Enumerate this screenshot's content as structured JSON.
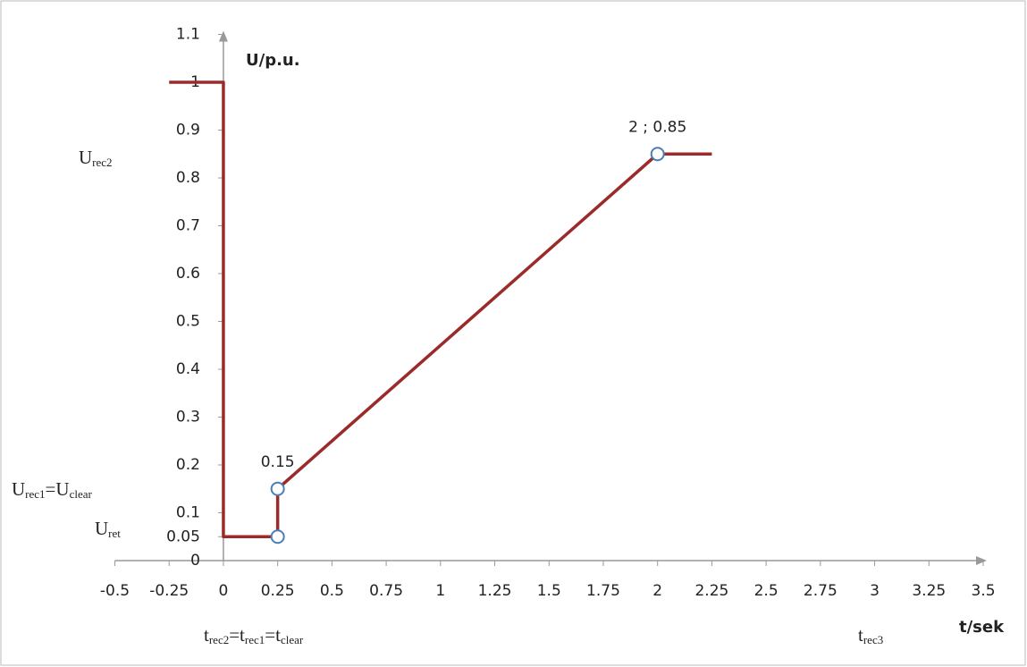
{
  "chart_data": {
    "type": "line",
    "y_axis_label": "U/p.u.",
    "x_axis_label": "t/sek",
    "xlim": [
      -0.5,
      3.5
    ],
    "ylim": [
      0,
      1.1
    ],
    "xticks": [
      -0.5,
      -0.25,
      0,
      0.25,
      0.5,
      0.75,
      1,
      1.25,
      1.5,
      1.75,
      2,
      2.25,
      2.5,
      2.75,
      3,
      3.25,
      3.5
    ],
    "yticks": [
      0,
      0.05,
      0.1,
      0.2,
      0.3,
      0.4,
      0.5,
      0.6,
      0.7,
      0.8,
      0.9,
      1,
      1.1
    ],
    "series": [
      {
        "color": "#9b2b2b",
        "x": [
          -0.25,
          0,
          0,
          0.25,
          0.25,
          2,
          2.25
        ],
        "values": [
          1,
          1,
          0.05,
          0.05,
          0.15,
          0.85,
          0.85
        ]
      }
    ],
    "markers": [
      {
        "x": 0.25,
        "y": 0.05
      },
      {
        "x": 0.25,
        "y": 0.15,
        "label": "0.15"
      },
      {
        "x": 2,
        "y": 0.85,
        "label": "2 ; 0.85"
      }
    ],
    "marker_color": "#4a7ebb",
    "annotations": [
      {
        "parts": [
          {
            "text": "U"
          },
          {
            "text": "rec2",
            "sub": true
          }
        ]
      },
      {
        "parts": [
          {
            "text": "U"
          },
          {
            "text": "rec1",
            "sub": true
          },
          {
            "text": "=U"
          },
          {
            "text": "clear",
            "sub": true
          }
        ]
      },
      {
        "parts": [
          {
            "text": "U"
          },
          {
            "text": "ret",
            "sub": true
          }
        ]
      },
      {
        "parts": [
          {
            "text": "t"
          },
          {
            "text": "rec2",
            "sub": true
          },
          {
            "text": "=t"
          },
          {
            "text": "rec1",
            "sub": true
          },
          {
            "text": "=t"
          },
          {
            "text": "clear",
            "sub": true
          }
        ]
      },
      {
        "parts": [
          {
            "text": "t"
          },
          {
            "text": "rec3",
            "sub": true
          }
        ]
      }
    ]
  }
}
